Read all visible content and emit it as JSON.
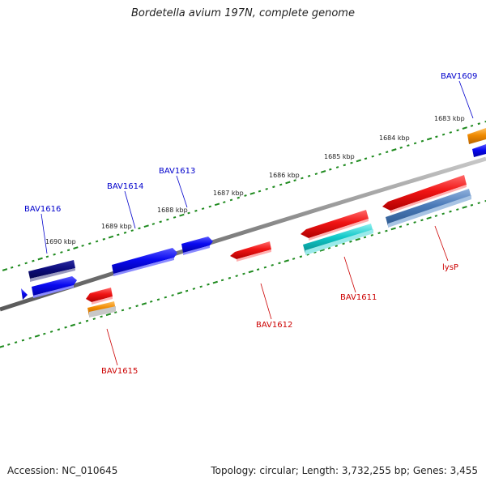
{
  "title": "Bordetella avium 197N, complete genome",
  "footer": {
    "accession": "Accession: NC_010645",
    "summary": "Topology: circular; Length: 3,732,255 bp; Genes: 3,455"
  },
  "scale_labels": [
    "1683 kbp",
    "1684 kbp",
    "1685 kbp",
    "1686 kbp",
    "1687 kbp",
    "1688 kbp",
    "1689 kbp",
    "1690 kbp"
  ],
  "gene_labels": {
    "BAV1609": "BAV1609",
    "BAV1616": "BAV1616",
    "BAV1614": "BAV1614",
    "BAV1613": "BAV1613",
    "BAV1615": "BAV1615",
    "BAV1612": "BAV1612",
    "BAV1611": "BAV1611",
    "lysP": "lysP"
  },
  "colors": {
    "forward_label": "#0000cc",
    "reverse_label": "#cc0000",
    "backbone": "#808080",
    "scale_ticks": "#1e8a1e",
    "navy": "#0b0b7a",
    "blue": "#0a0af0",
    "red": "#ee1010",
    "cyan": "#10c8c8",
    "orange": "#f08a00",
    "steelblue": "#4a7ab8"
  }
}
